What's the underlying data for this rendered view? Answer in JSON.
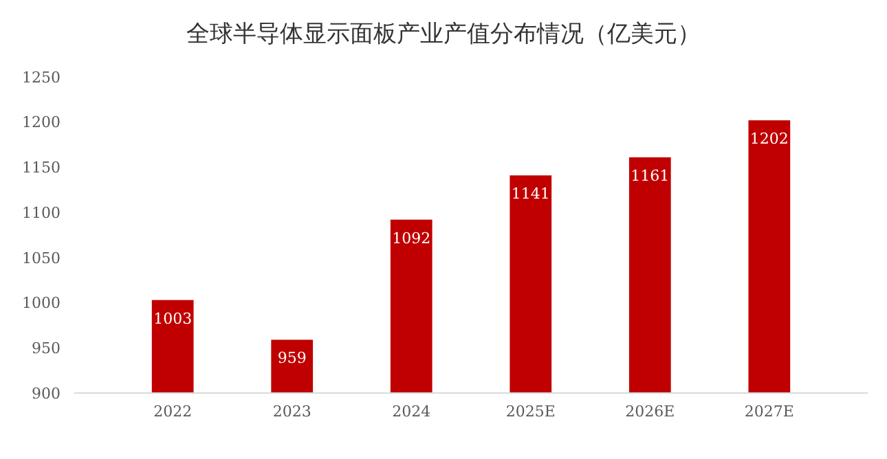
{
  "chart_data": {
    "type": "bar",
    "title": "全球半导体显示面板产业产值分布情况（亿美元）",
    "categories": [
      "2022",
      "2023",
      "2024",
      "2025E",
      "2026E",
      "2027E"
    ],
    "values": [
      1003,
      959,
      1092,
      1141,
      1161,
      1202
    ],
    "color": "#c00000",
    "ylim": [
      900,
      1250
    ],
    "yticks": [
      900,
      950,
      1000,
      1050,
      1100,
      1150,
      1200,
      1250
    ],
    "data_labels": true,
    "grid": false
  }
}
